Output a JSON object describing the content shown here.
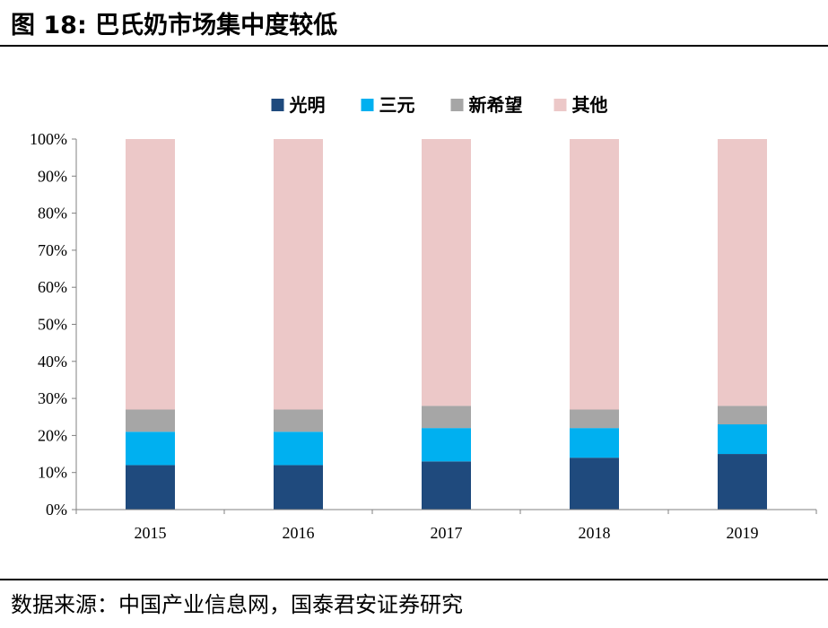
{
  "header": {
    "title": "图 18: 巴氏奶市场集中度较低"
  },
  "footer": {
    "source": "数据来源：中国产业信息网，国泰君安证券研究"
  },
  "chart_data": {
    "type": "bar",
    "stacked": true,
    "categories": [
      "2015",
      "2016",
      "2017",
      "2018",
      "2019"
    ],
    "series": [
      {
        "name": "光明",
        "color": "#1f4a7d",
        "values": [
          12,
          12,
          13,
          14,
          15
        ]
      },
      {
        "name": "三元",
        "color": "#00b0f0",
        "values": [
          9,
          9,
          9,
          8,
          8
        ]
      },
      {
        "name": "新希望",
        "color": "#a6a6a6",
        "values": [
          6,
          6,
          6,
          5,
          5
        ]
      },
      {
        "name": "其他",
        "color": "#ecc8c8",
        "values": [
          73,
          73,
          72,
          73,
          72
        ]
      }
    ],
    "yticks": [
      "0%",
      "10%",
      "20%",
      "30%",
      "40%",
      "50%",
      "60%",
      "70%",
      "80%",
      "90%",
      "100%"
    ],
    "ylim": [
      0,
      100
    ],
    "grid": false,
    "legend": "top-center"
  }
}
